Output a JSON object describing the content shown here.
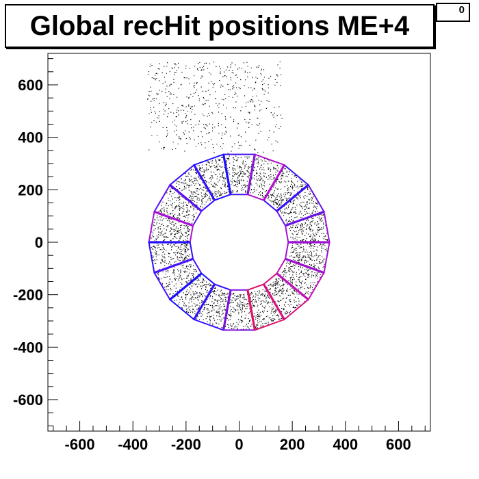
{
  "title": "Global recHit positions ME+4",
  "stats_label": "0",
  "chart_data": {
    "type": "scatter",
    "title": "Global recHit positions ME+4",
    "xlabel": "",
    "ylabel": "",
    "xlim": [
      -720,
      720
    ],
    "ylim": [
      -720,
      720
    ],
    "x_tick_labels": [
      "-600",
      "-400",
      "-200",
      "0",
      "200",
      "400",
      "600"
    ],
    "x_ticks": [
      -600,
      -400,
      -200,
      0,
      200,
      400,
      600
    ],
    "y_tick_labels": [
      "600",
      "400",
      "200",
      "0",
      "-200",
      "-400",
      "-600"
    ],
    "y_ticks": [
      600,
      400,
      200,
      0,
      -200,
      -400,
      -600
    ],
    "grid": false,
    "rings": {
      "chamber_count": 18,
      "inner_radius": 185,
      "outer_radius": 340,
      "start_angle_deg": 90,
      "point_color": "#000000",
      "edge_colors": [
        "#3a10f0",
        "#1e10ff",
        "#3010ff",
        "#5a10f5",
        "#a810d8",
        "#2810ff",
        "#4810ff",
        "#1810ff",
        "#3010ff",
        "#7a10e0",
        "#e0106a",
        "#d81080",
        "#c010b8",
        "#9e10d0",
        "#a010d8",
        "#6a10e8",
        "#3a10f5",
        "#b010cc"
      ]
    },
    "outlier_cluster": {
      "x_range": [
        -350,
        160
      ],
      "y_range": [
        340,
        690
      ]
    }
  }
}
